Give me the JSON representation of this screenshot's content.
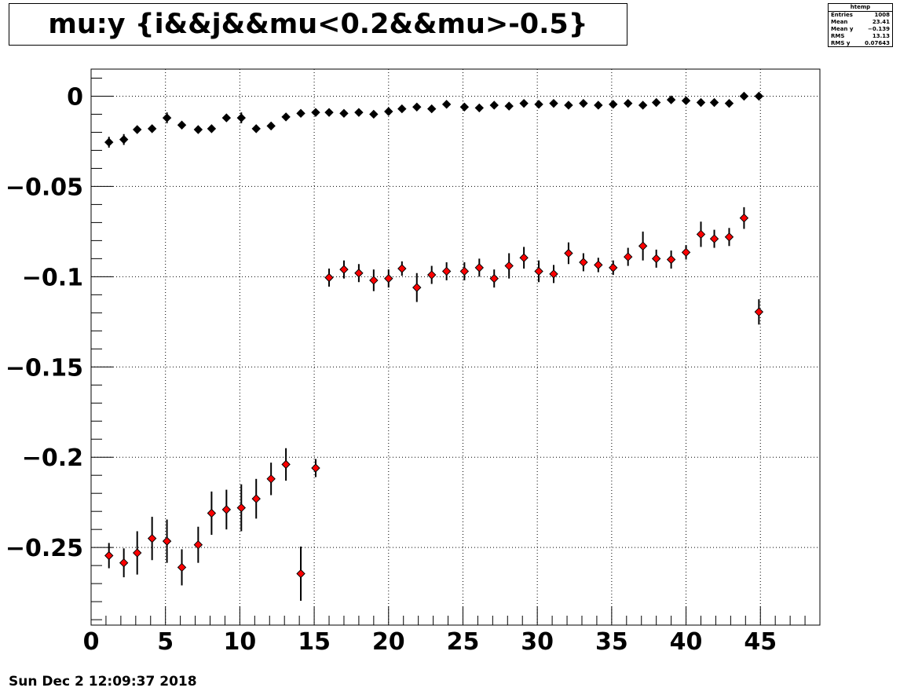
{
  "title": "mu:y {i&&j&&mu<0.2&&mu>-0.5}",
  "stats": {
    "name": "htemp",
    "rows": [
      {
        "label": "Entries",
        "value": "1008"
      },
      {
        "label": "Mean",
        "value": "23.41"
      },
      {
        "label": "Mean y",
        "value": "−0.139"
      },
      {
        "label": "RMS",
        "value": "13.13"
      },
      {
        "label": "RMS y",
        "value": "0.07643"
      }
    ]
  },
  "footer": "Sun Dec  2 12:09:37 2018",
  "chart_data": {
    "type": "scatter",
    "title": "mu:y {i&&j&&mu<0.2&&mu>-0.5}",
    "xlabel": "",
    "ylabel": "",
    "xlim": [
      0,
      49
    ],
    "ylim": [
      -0.293,
      0.015
    ],
    "grid": true,
    "x_ticks": [
      "0",
      "5",
      "10",
      "15",
      "20",
      "25",
      "30",
      "35",
      "40",
      "45"
    ],
    "y_ticks": [
      "0",
      "−0.05",
      "−0.1",
      "−0.15",
      "−0.2",
      "−0.25"
    ],
    "series": [
      {
        "color": "#000000",
        "points": [
          {
            "x": 1.2,
            "y": -0.0255,
            "err": 0.003
          },
          {
            "x": 2.2,
            "y": -0.024,
            "err": 0.003
          },
          {
            "x": 3.1,
            "y": -0.0185,
            "err": 0.002
          },
          {
            "x": 4.1,
            "y": -0.018,
            "err": 0.002
          },
          {
            "x": 5.1,
            "y": -0.012,
            "err": 0.003
          },
          {
            "x": 6.1,
            "y": -0.016,
            "err": 0.002
          },
          {
            "x": 7.2,
            "y": -0.0185,
            "err": 0.002
          },
          {
            "x": 8.1,
            "y": -0.018,
            "err": 0.002
          },
          {
            "x": 9.1,
            "y": -0.012,
            "err": 0.002
          },
          {
            "x": 10.1,
            "y": -0.012,
            "err": 0.003
          },
          {
            "x": 11.1,
            "y": -0.018,
            "err": 0.002
          },
          {
            "x": 12.1,
            "y": -0.0165,
            "err": 0.002
          },
          {
            "x": 13.1,
            "y": -0.0115,
            "err": 0.002
          },
          {
            "x": 14.1,
            "y": -0.0095,
            "err": 0.001
          },
          {
            "x": 15.1,
            "y": -0.009,
            "err": 0.001
          },
          {
            "x": 16.0,
            "y": -0.009,
            "err": 0.001
          },
          {
            "x": 17.0,
            "y": -0.0095,
            "err": 0.001
          },
          {
            "x": 18.0,
            "y": -0.009,
            "err": 0.001
          },
          {
            "x": 19.0,
            "y": -0.01,
            "err": 0.001
          },
          {
            "x": 20.0,
            "y": -0.0085,
            "err": 0.001
          },
          {
            "x": 20.9,
            "y": -0.007,
            "err": 0.001
          },
          {
            "x": 21.9,
            "y": -0.006,
            "err": 0.001
          },
          {
            "x": 22.9,
            "y": -0.007,
            "err": 0.001
          },
          {
            "x": 23.9,
            "y": -0.0045,
            "err": 0.001
          },
          {
            "x": 25.1,
            "y": -0.006,
            "err": 0.001
          },
          {
            "x": 26.1,
            "y": -0.0065,
            "err": 0.001
          },
          {
            "x": 27.1,
            "y": -0.005,
            "err": 0.001
          },
          {
            "x": 28.1,
            "y": -0.0055,
            "err": 0.001
          },
          {
            "x": 29.1,
            "y": -0.004,
            "err": 0.001
          },
          {
            "x": 30.1,
            "y": -0.0045,
            "err": 0.001
          },
          {
            "x": 31.1,
            "y": -0.004,
            "err": 0.001
          },
          {
            "x": 32.1,
            "y": -0.005,
            "err": 0.001
          },
          {
            "x": 33.1,
            "y": -0.004,
            "err": 0.001
          },
          {
            "x": 34.1,
            "y": -0.005,
            "err": 0.001
          },
          {
            "x": 35.1,
            "y": -0.0045,
            "err": 0.001
          },
          {
            "x": 36.1,
            "y": -0.004,
            "err": 0.001
          },
          {
            "x": 37.1,
            "y": -0.005,
            "err": 0.001
          },
          {
            "x": 38.0,
            "y": -0.0035,
            "err": 0.002
          },
          {
            "x": 39.0,
            "y": -0.002,
            "err": 0.001
          },
          {
            "x": 40.0,
            "y": -0.0025,
            "err": 0.002
          },
          {
            "x": 41.0,
            "y": -0.0035,
            "err": 0.001
          },
          {
            "x": 41.9,
            "y": -0.0035,
            "err": 0.001
          },
          {
            "x": 42.9,
            "y": -0.004,
            "err": 0.001
          },
          {
            "x": 43.9,
            "y": 0.0,
            "err": 0.001
          },
          {
            "x": 44.9,
            "y": 0.0,
            "err": 0.001
          }
        ]
      },
      {
        "color": "#ff0000",
        "points": [
          {
            "x": 1.2,
            "y": -0.2545,
            "err": 0.007
          },
          {
            "x": 2.2,
            "y": -0.2585,
            "err": 0.008
          },
          {
            "x": 3.1,
            "y": -0.253,
            "err": 0.012
          },
          {
            "x": 4.1,
            "y": -0.245,
            "err": 0.012
          },
          {
            "x": 5.1,
            "y": -0.2465,
            "err": 0.012
          },
          {
            "x": 6.1,
            "y": -0.261,
            "err": 0.01
          },
          {
            "x": 7.2,
            "y": -0.2485,
            "err": 0.01
          },
          {
            "x": 8.1,
            "y": -0.231,
            "err": 0.012
          },
          {
            "x": 9.1,
            "y": -0.229,
            "err": 0.011
          },
          {
            "x": 10.1,
            "y": -0.228,
            "err": 0.013
          },
          {
            "x": 11.1,
            "y": -0.223,
            "err": 0.011
          },
          {
            "x": 12.1,
            "y": -0.212,
            "err": 0.009
          },
          {
            "x": 13.1,
            "y": -0.204,
            "err": 0.009
          },
          {
            "x": 14.1,
            "y": -0.2645,
            "err": 0.015
          },
          {
            "x": 15.1,
            "y": -0.206,
            "err": 0.005
          },
          {
            "x": 16.0,
            "y": -0.1005,
            "err": 0.005
          },
          {
            "x": 17.0,
            "y": -0.096,
            "err": 0.005
          },
          {
            "x": 18.0,
            "y": -0.098,
            "err": 0.005
          },
          {
            "x": 19.0,
            "y": -0.102,
            "err": 0.006
          },
          {
            "x": 20.0,
            "y": -0.101,
            "err": 0.005
          },
          {
            "x": 20.9,
            "y": -0.0955,
            "err": 0.004
          },
          {
            "x": 21.9,
            "y": -0.106,
            "err": 0.008
          },
          {
            "x": 22.9,
            "y": -0.099,
            "err": 0.005
          },
          {
            "x": 23.9,
            "y": -0.097,
            "err": 0.005
          },
          {
            "x": 25.1,
            "y": -0.097,
            "err": 0.005
          },
          {
            "x": 26.1,
            "y": -0.095,
            "err": 0.005
          },
          {
            "x": 27.1,
            "y": -0.101,
            "err": 0.005
          },
          {
            "x": 28.1,
            "y": -0.094,
            "err": 0.007
          },
          {
            "x": 29.1,
            "y": -0.0895,
            "err": 0.006
          },
          {
            "x": 30.1,
            "y": -0.097,
            "err": 0.006
          },
          {
            "x": 31.1,
            "y": -0.0985,
            "err": 0.005
          },
          {
            "x": 32.1,
            "y": -0.087,
            "err": 0.006
          },
          {
            "x": 33.1,
            "y": -0.092,
            "err": 0.005
          },
          {
            "x": 34.1,
            "y": -0.0935,
            "err": 0.004
          },
          {
            "x": 35.1,
            "y": -0.095,
            "err": 0.004
          },
          {
            "x": 36.1,
            "y": -0.089,
            "err": 0.005
          },
          {
            "x": 37.1,
            "y": -0.083,
            "err": 0.008
          },
          {
            "x": 38.0,
            "y": -0.09,
            "err": 0.005
          },
          {
            "x": 39.0,
            "y": -0.0905,
            "err": 0.005
          },
          {
            "x": 40.0,
            "y": -0.0865,
            "err": 0.004
          },
          {
            "x": 41.0,
            "y": -0.0765,
            "err": 0.007
          },
          {
            "x": 41.9,
            "y": -0.079,
            "err": 0.005
          },
          {
            "x": 42.9,
            "y": -0.078,
            "err": 0.005
          },
          {
            "x": 43.9,
            "y": -0.0675,
            "err": 0.006
          },
          {
            "x": 44.9,
            "y": -0.1195,
            "err": 0.007
          }
        ]
      }
    ]
  }
}
